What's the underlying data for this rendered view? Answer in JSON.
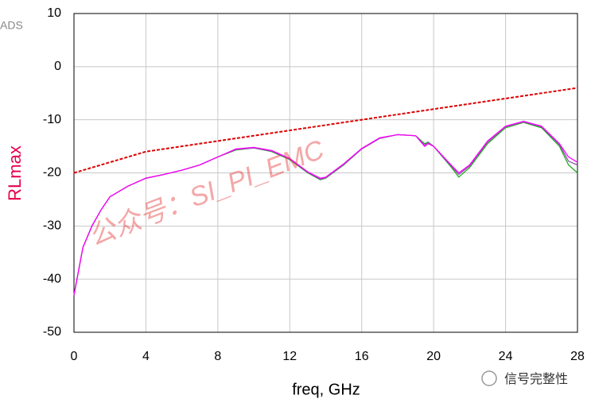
{
  "chart_data": {
    "type": "line",
    "brand": "ADS",
    "y_label": "RLmax",
    "x_label": "freq, GHz",
    "watermark": "公众号：SI_PI_EMC",
    "logo_text": "信号完整性",
    "x": [
      0,
      0.5,
      1,
      1.5,
      2,
      3,
      4,
      5,
      6,
      7,
      8,
      9,
      10,
      11,
      12,
      13,
      13.7,
      14,
      15,
      16,
      17,
      18,
      19,
      19.5,
      19.7,
      20,
      21,
      21.4,
      22,
      23,
      24,
      25,
      26,
      27,
      27.5,
      28
    ],
    "series": [
      {
        "color": "#22aa22",
        "values": [
          -43,
          -34,
          -30,
          -27,
          -24.5,
          -22.5,
          -21,
          -20.3,
          -19.5,
          -18.5,
          -17,
          -15.7,
          -15.3,
          -16,
          -17.5,
          -20,
          -21.3,
          -21,
          -18.5,
          -15.5,
          -13.5,
          -12.8,
          -13,
          -14.5,
          -14.2,
          -15,
          -19,
          -20.8,
          -19,
          -14.5,
          -11.5,
          -10.5,
          -11.5,
          -15,
          -18.5,
          -20
        ]
      },
      {
        "color": "#8855aa",
        "values": [
          -43,
          -34,
          -30,
          -27,
          -24.5,
          -22.5,
          -21,
          -20.3,
          -19.5,
          -18.5,
          -17,
          -15.6,
          -15.3,
          -15.9,
          -17.4,
          -19.9,
          -21.2,
          -20.9,
          -18.4,
          -15.5,
          -13.5,
          -12.8,
          -13,
          -14.8,
          -14.3,
          -15,
          -18.8,
          -20.3,
          -18.7,
          -14.2,
          -11.3,
          -10.4,
          -11.3,
          -14.7,
          -17.8,
          -18.5
        ]
      },
      {
        "color": "#ff00ff",
        "values": [
          -43,
          -34,
          -30,
          -27,
          -24.5,
          -22.5,
          -21,
          -20.3,
          -19.5,
          -18.5,
          -17,
          -15.5,
          -15.2,
          -15.8,
          -17.3,
          -19.8,
          -21,
          -20.8,
          -18.3,
          -15.4,
          -13.4,
          -12.8,
          -13,
          -15,
          -14.5,
          -15,
          -18.6,
          -20,
          -18.5,
          -14,
          -11.2,
          -10.3,
          -11.2,
          -14.5,
          -17,
          -18
        ]
      },
      {
        "color": "#dd0000",
        "dashed": true,
        "x": [
          0,
          4,
          28
        ],
        "values": [
          -20,
          -16,
          -4
        ]
      }
    ],
    "xlim": [
      0,
      28
    ],
    "xticks": [
      0,
      4,
      8,
      12,
      16,
      20,
      24,
      28
    ],
    "ylim": [
      -50,
      10
    ],
    "yticks": [
      -50,
      -40,
      -30,
      -20,
      -10,
      0,
      10
    ],
    "grid": true
  }
}
